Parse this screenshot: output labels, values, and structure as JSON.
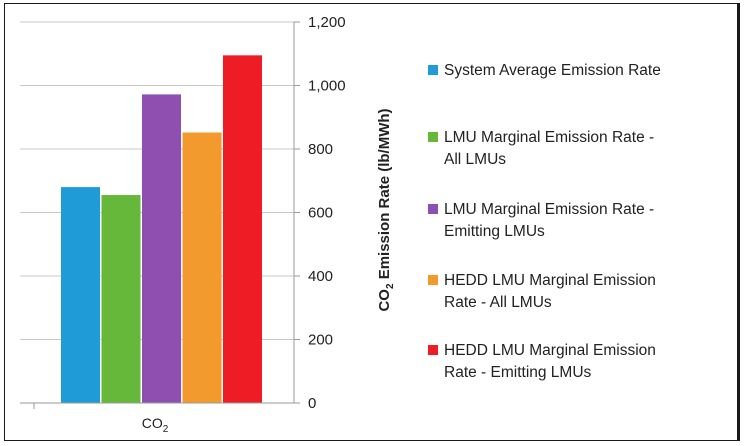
{
  "chart_data": {
    "type": "bar",
    "categories": [
      "CO2"
    ],
    "category_label_base": "CO",
    "category_label_sub": "2",
    "series": [
      {
        "name": "System Average Emission Rate",
        "values": [
          680
        ],
        "color": "#1f9bd7"
      },
      {
        "name": "LMU Marginal Emission Rate - All LMUs",
        "values": [
          655
        ],
        "color": "#66b83a"
      },
      {
        "name": "LMU Marginal Emission Rate - Emitting LMUs",
        "values": [
          972
        ],
        "color": "#8f4fb0"
      },
      {
        "name": "HEDD LMU Marginal Emission Rate - All LMUs",
        "values": [
          852
        ],
        "color": "#f39a2e"
      },
      {
        "name": "HEDD LMU Marginal Emission Rate - Emitting LMUs",
        "values": [
          1095
        ],
        "color": "#ee1c24"
      }
    ],
    "legend_lines": [
      [
        "System Average Emission Rate"
      ],
      [
        "LMU Marginal Emission Rate -",
        "All LMUs"
      ],
      [
        "LMU Marginal Emission Rate -",
        "Emitting LMUs"
      ],
      [
        "HEDD LMU Marginal Emission",
        "Rate - All LMUs"
      ],
      [
        "HEDD LMU Marginal Emission",
        "Rate - Emitting LMUs"
      ]
    ],
    "yticks": [
      "0",
      "200",
      "400",
      "600",
      "800",
      "1,000",
      "1,200"
    ],
    "ylim": [
      0,
      1200
    ],
    "ylabel_pre": "CO",
    "ylabel_sub": "2",
    "ylabel_post": " Emission Rate (lb/MWh)",
    "axis_side": "right",
    "grid": true,
    "legend_position": "right",
    "grid_color": "#c8c8c8"
  }
}
